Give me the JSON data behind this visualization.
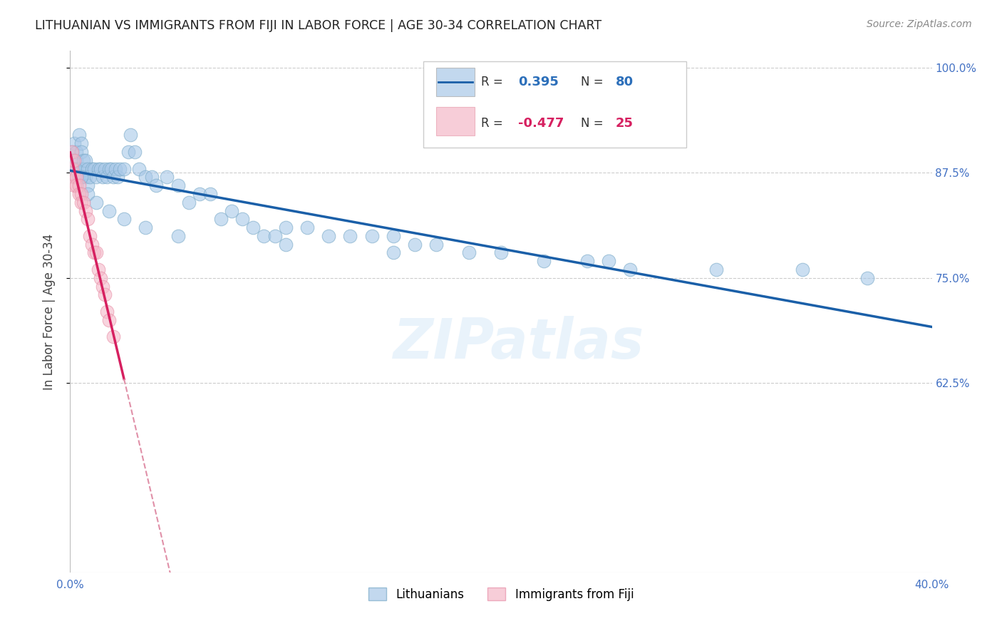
{
  "title": "LITHUANIAN VS IMMIGRANTS FROM FIJI IN LABOR FORCE | AGE 30-34 CORRELATION CHART",
  "source": "Source: ZipAtlas.com",
  "ylabel": "In Labor Force | Age 30-34",
  "xlim": [
    0.0,
    0.4
  ],
  "ylim": [
    0.4,
    1.02
  ],
  "blue_R": 0.395,
  "blue_N": 80,
  "pink_R": -0.477,
  "pink_N": 25,
  "blue_color": "#a8c8e8",
  "pink_color": "#f4b8c8",
  "blue_edge_color": "#7aaac8",
  "pink_edge_color": "#e890a8",
  "blue_line_color": "#1a5fa8",
  "pink_line_color": "#d62060",
  "legend_label_blue": "Lithuanians",
  "legend_label_pink": "Immigrants from Fiji",
  "watermark": "ZIPatlas",
  "grid_color": "#cccccc",
  "tick_color": "#4472c4",
  "blue_x": [
    0.001,
    0.001,
    0.002,
    0.002,
    0.002,
    0.003,
    0.003,
    0.003,
    0.004,
    0.004,
    0.004,
    0.005,
    0.005,
    0.005,
    0.006,
    0.006,
    0.007,
    0.007,
    0.008,
    0.008,
    0.009,
    0.01,
    0.011,
    0.012,
    0.013,
    0.014,
    0.015,
    0.016,
    0.017,
    0.018,
    0.019,
    0.02,
    0.021,
    0.022,
    0.023,
    0.025,
    0.027,
    0.028,
    0.03,
    0.032,
    0.035,
    0.038,
    0.04,
    0.045,
    0.05,
    0.055,
    0.06,
    0.065,
    0.07,
    0.075,
    0.08,
    0.085,
    0.09,
    0.095,
    0.1,
    0.11,
    0.12,
    0.13,
    0.14,
    0.15,
    0.16,
    0.17,
    0.185,
    0.2,
    0.22,
    0.24,
    0.26,
    0.3,
    0.34,
    0.37,
    0.005,
    0.008,
    0.012,
    0.018,
    0.025,
    0.035,
    0.05,
    0.1,
    0.15,
    0.25
  ],
  "blue_y": [
    0.9,
    0.89,
    0.91,
    0.88,
    0.87,
    0.9,
    0.89,
    0.88,
    0.92,
    0.88,
    0.87,
    0.91,
    0.9,
    0.87,
    0.89,
    0.88,
    0.89,
    0.87,
    0.88,
    0.86,
    0.87,
    0.88,
    0.88,
    0.87,
    0.88,
    0.88,
    0.87,
    0.88,
    0.87,
    0.88,
    0.88,
    0.87,
    0.88,
    0.87,
    0.88,
    0.88,
    0.9,
    0.92,
    0.9,
    0.88,
    0.87,
    0.87,
    0.86,
    0.87,
    0.86,
    0.84,
    0.85,
    0.85,
    0.82,
    0.83,
    0.82,
    0.81,
    0.8,
    0.8,
    0.81,
    0.81,
    0.8,
    0.8,
    0.8,
    0.8,
    0.79,
    0.79,
    0.78,
    0.78,
    0.77,
    0.77,
    0.76,
    0.76,
    0.76,
    0.75,
    0.87,
    0.85,
    0.84,
    0.83,
    0.82,
    0.81,
    0.8,
    0.79,
    0.78,
    0.77
  ],
  "pink_x": [
    0.001,
    0.001,
    0.002,
    0.002,
    0.002,
    0.003,
    0.003,
    0.004,
    0.004,
    0.005,
    0.005,
    0.006,
    0.007,
    0.008,
    0.009,
    0.01,
    0.011,
    0.012,
    0.013,
    0.014,
    0.015,
    0.016,
    0.017,
    0.018,
    0.02
  ],
  "pink_y": [
    0.9,
    0.88,
    0.89,
    0.87,
    0.86,
    0.87,
    0.86,
    0.86,
    0.85,
    0.85,
    0.84,
    0.84,
    0.83,
    0.82,
    0.8,
    0.79,
    0.78,
    0.78,
    0.76,
    0.75,
    0.74,
    0.73,
    0.71,
    0.7,
    0.68
  ]
}
